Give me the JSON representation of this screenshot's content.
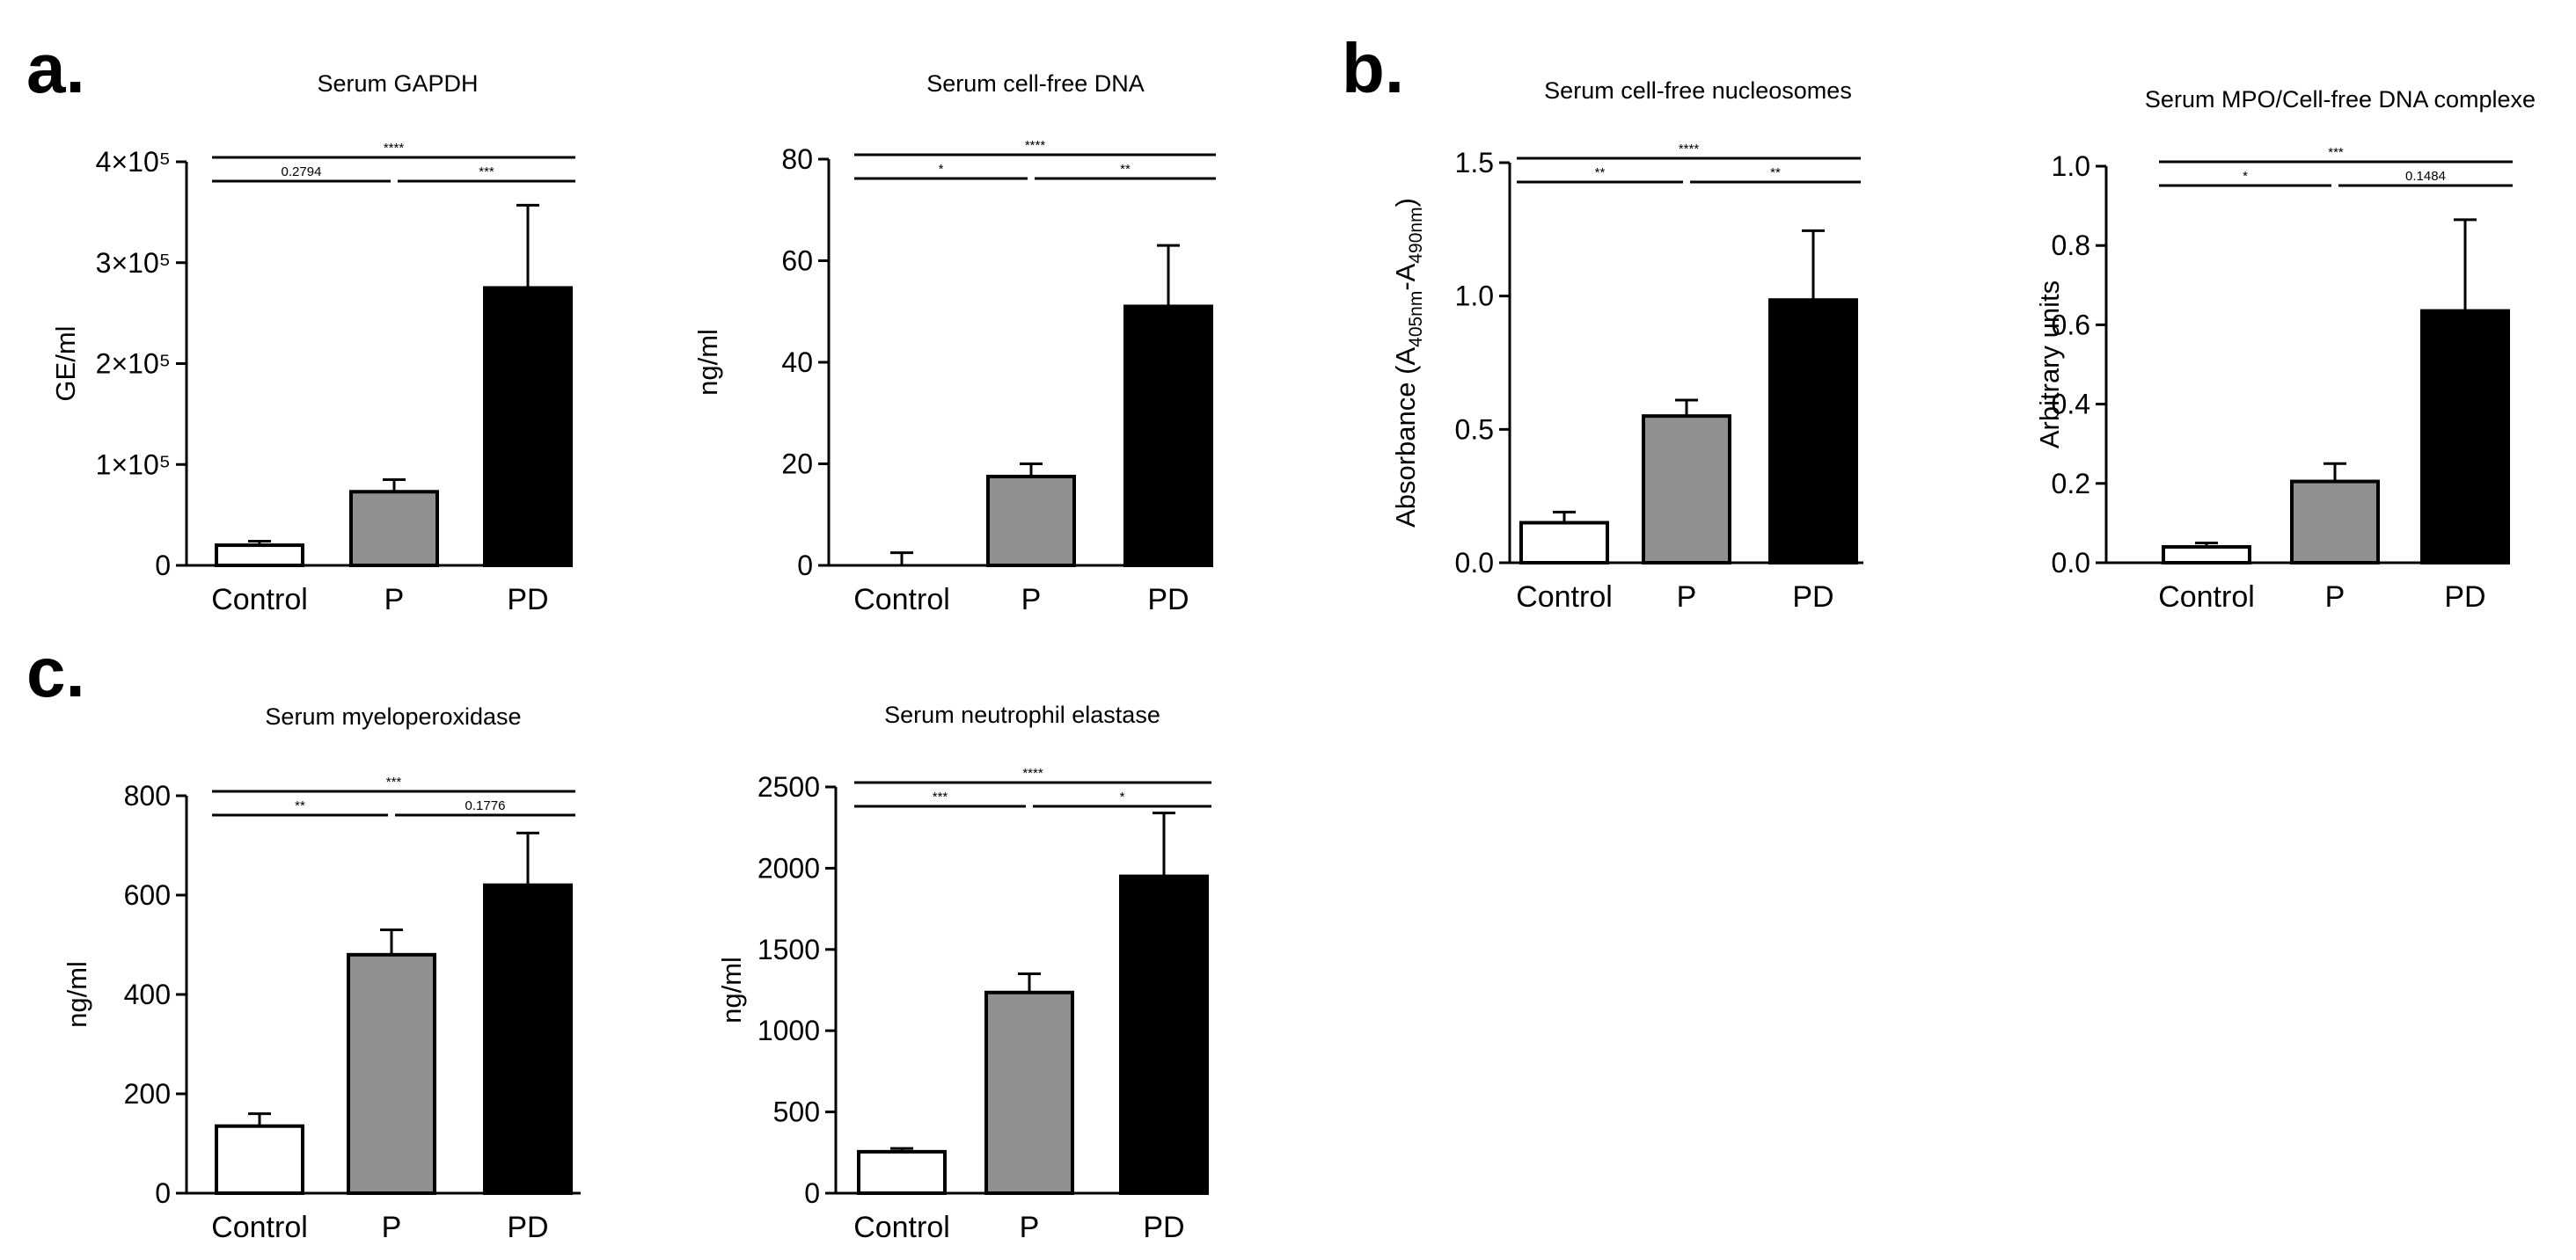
{
  "figure": {
    "panel_labels": [
      "a.",
      "b.",
      "c."
    ]
  },
  "colors": {
    "control": "#ffffff",
    "p": "#909090",
    "pd": "#000000",
    "stroke": "#000000"
  },
  "chart_data": [
    {
      "id": "gapdh",
      "panel": "a.",
      "type": "bar",
      "title": "Serum GAPDH",
      "ylabel": "GE/ml",
      "categories": [
        "Control",
        "P",
        "PD"
      ],
      "values": [
        20000,
        73000,
        275000
      ],
      "errors": [
        4000,
        12000,
        82000
      ],
      "ylim": [
        0,
        400000
      ],
      "yticks": [
        0,
        100000,
        200000,
        300000,
        400000
      ],
      "ytick_labels": [
        "0",
        "1×10⁵",
        "2×10⁵",
        "3×10⁵",
        "4×10⁵"
      ],
      "significance": [
        {
          "from": 0,
          "to": 1,
          "label": "0.2794"
        },
        {
          "from": 1,
          "to": 2,
          "label": "***"
        },
        {
          "from": 0,
          "to": 2,
          "label": "****"
        }
      ]
    },
    {
      "id": "cfdna",
      "panel": "",
      "type": "bar",
      "title": "Serum cell-free DNA",
      "ylabel": "ng/ml",
      "categories": [
        "Control",
        "P",
        "PD"
      ],
      "values": [
        0,
        17.5,
        51
      ],
      "errors": [
        2.5,
        2.5,
        12
      ],
      "ylim": [
        0,
        80
      ],
      "yticks": [
        0,
        20,
        40,
        60,
        80
      ],
      "ytick_labels": [
        "0",
        "20",
        "40",
        "60",
        "80"
      ],
      "significance": [
        {
          "from": 0,
          "to": 1,
          "label": "*"
        },
        {
          "from": 1,
          "to": 2,
          "label": "**"
        },
        {
          "from": 0,
          "to": 2,
          "label": "****"
        }
      ]
    },
    {
      "id": "nucleosomes",
      "panel": "b.",
      "type": "bar",
      "title": "Serum cell-free nucleosomes",
      "ylabel": "Absorbance (A405nm-A490nm)",
      "ylabel_parts": {
        "pre": "Absorbance (A",
        "sub1": "405nm",
        "mid": "-A",
        "sub2": "490nm",
        "post": ")"
      },
      "categories": [
        "Control",
        "P",
        "PD"
      ],
      "values": [
        0.15,
        0.55,
        0.985
      ],
      "errors": [
        0.04,
        0.06,
        0.26
      ],
      "ylim": [
        0,
        1.5
      ],
      "yticks": [
        0,
        0.5,
        1.0,
        1.5
      ],
      "ytick_labels": [
        "0.0",
        "0.5",
        "1.0",
        "1.5"
      ],
      "significance": [
        {
          "from": 0,
          "to": 1,
          "label": "**"
        },
        {
          "from": 1,
          "to": 2,
          "label": "**"
        },
        {
          "from": 0,
          "to": 2,
          "label": "****"
        }
      ]
    },
    {
      "id": "mpo-dna",
      "panel": "",
      "type": "bar",
      "title": "Serum MPO/Cell-free DNA complexe",
      "ylabel": "Arbitrary units",
      "categories": [
        "Control",
        "P",
        "PD"
      ],
      "values": [
        0.04,
        0.205,
        0.635
      ],
      "errors": [
        0.01,
        0.045,
        0.23
      ],
      "ylim": [
        0,
        1.0
      ],
      "yticks": [
        0,
        0.2,
        0.4,
        0.6,
        0.8,
        1.0
      ],
      "ytick_labels": [
        "0.0",
        "0.2",
        "0.4",
        "0.6",
        "0.8",
        "1.0"
      ],
      "significance": [
        {
          "from": 0,
          "to": 1,
          "label": "*"
        },
        {
          "from": 1,
          "to": 2,
          "label": "0.1484"
        },
        {
          "from": 0,
          "to": 2,
          "label": "***"
        }
      ]
    },
    {
      "id": "mpo",
      "panel": "c.",
      "type": "bar",
      "title": "Serum myeloperoxidase",
      "ylabel": "ng/ml",
      "categories": [
        "Control",
        "P",
        "PD"
      ],
      "values": [
        135,
        480,
        620
      ],
      "errors": [
        25,
        50,
        105
      ],
      "ylim": [
        0,
        800
      ],
      "yticks": [
        0,
        200,
        400,
        600,
        800
      ],
      "ytick_labels": [
        "0",
        "200",
        "400",
        "600",
        "800"
      ],
      "significance": [
        {
          "from": 0,
          "to": 1,
          "label": "**"
        },
        {
          "from": 1,
          "to": 2,
          "label": "0.1776"
        },
        {
          "from": 0,
          "to": 2,
          "label": "***"
        }
      ]
    },
    {
      "id": "elastase",
      "panel": "",
      "type": "bar",
      "title": "Serum neutrophil elastase",
      "ylabel": "ng/ml",
      "categories": [
        "Control",
        "P",
        "PD"
      ],
      "values": [
        255,
        1235,
        1950
      ],
      "errors": [
        20,
        115,
        390
      ],
      "ylim": [
        0,
        2500
      ],
      "yticks": [
        0,
        500,
        1000,
        1500,
        2000,
        2500
      ],
      "ytick_labels": [
        "0",
        "500",
        "1000",
        "1500",
        "2000",
        "2500"
      ],
      "significance": [
        {
          "from": 0,
          "to": 1,
          "label": "***"
        },
        {
          "from": 1,
          "to": 2,
          "label": "*"
        },
        {
          "from": 0,
          "to": 2,
          "label": "****"
        }
      ]
    }
  ]
}
